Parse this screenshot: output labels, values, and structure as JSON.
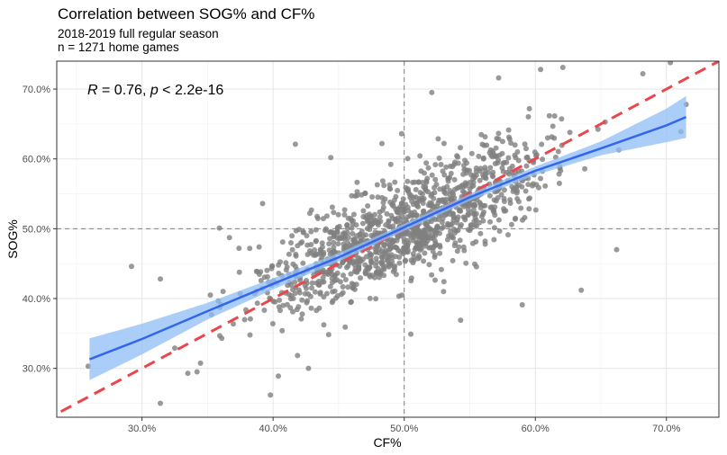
{
  "chart_data": {
    "type": "scatter",
    "title": "Correlation between SOG% and CF%",
    "subtitle": [
      "2018-2019 full regular season",
      "n = 1271 home games"
    ],
    "xlabel": "CF%",
    "ylabel": "SOG%",
    "xlim": [
      23.5,
      74
    ],
    "ylim": [
      23,
      74
    ],
    "x_ticks": [
      30,
      40,
      50,
      60,
      70
    ],
    "y_ticks": [
      30,
      40,
      50,
      60,
      70
    ],
    "x_tick_labels": [
      "30.0%",
      "40.0%",
      "50.0%",
      "60.0%",
      "70.0%"
    ],
    "y_tick_labels": [
      "30.0%",
      "40.0%",
      "50.0%",
      "60.0%",
      "70.0%"
    ],
    "grid": true,
    "annotation": {
      "r_symbol": "R",
      "r_text": " = 0.76, ",
      "p_symbol": "p",
      "p_text": " < 2.2e-16"
    },
    "reference_lines": {
      "vertical": 50,
      "horizontal": 50,
      "identity_line": true
    },
    "fit": {
      "method": "loess",
      "x": [
        26,
        30,
        35,
        40,
        45,
        50,
        55,
        60,
        65,
        70,
        71.5
      ],
      "y": [
        31.3,
        34.2,
        38.2,
        42.1,
        45.9,
        50.2,
        54.5,
        58.3,
        61.5,
        64.8,
        66.0
      ],
      "ci_lower": [
        28.3,
        32.0,
        37.0,
        41.3,
        45.3,
        49.7,
        54.0,
        57.7,
        60.5,
        62.4,
        63.0
      ],
      "ci_upper": [
        34.3,
        36.4,
        39.4,
        42.9,
        46.5,
        50.7,
        55.0,
        58.9,
        62.5,
        67.2,
        69.0
      ]
    },
    "points_count": 1271,
    "points_sample": [
      [
        25.9,
        30.3
      ],
      [
        29.2,
        44.6
      ],
      [
        31.4,
        25.0
      ],
      [
        31.4,
        42.8
      ],
      [
        32.5,
        32.9
      ],
      [
        33.5,
        29.3
      ],
      [
        34.2,
        29.5
      ],
      [
        35.9,
        50.1
      ],
      [
        37.4,
        47.2
      ],
      [
        39.2,
        53.6
      ],
      [
        39.8,
        26.2
      ],
      [
        40.4,
        28.9
      ],
      [
        41.7,
        62.1
      ],
      [
        42.7,
        30.0
      ],
      [
        44.4,
        60.2
      ],
      [
        45.5,
        35.9
      ],
      [
        48.3,
        62.2
      ],
      [
        49.8,
        63.6
      ],
      [
        50.5,
        34.9
      ],
      [
        52.1,
        69.5
      ],
      [
        53.0,
        41.0
      ],
      [
        54.3,
        36.9
      ],
      [
        57.2,
        71.6
      ],
      [
        59.0,
        39.1
      ],
      [
        60.4,
        72.8
      ],
      [
        62.1,
        73.1
      ],
      [
        63.5,
        41.2
      ],
      [
        66.2,
        47.0
      ],
      [
        68.2,
        72.2
      ],
      [
        70.3,
        73.8
      ],
      [
        71.1,
        63.9
      ],
      [
        71.5,
        67.8
      ]
    ]
  }
}
